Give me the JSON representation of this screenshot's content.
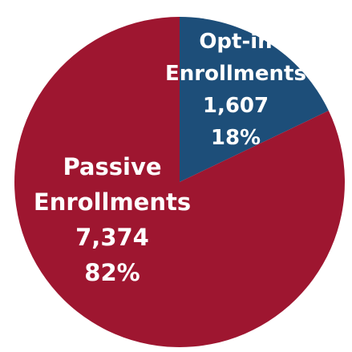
{
  "chart_data": {
    "type": "pie",
    "title": "",
    "slices": [
      {
        "name_lines": [
          "Opt-in",
          "Enrollments"
        ],
        "value": 1607,
        "value_label": "1,607",
        "percent": 18,
        "percent_label": "18%",
        "color": "#1d4e79"
      },
      {
        "name_lines": [
          "Passive",
          "Enrollments"
        ],
        "value": 7374,
        "value_label": "7,374",
        "percent": 82,
        "percent_label": "82%",
        "color": "#9e1630"
      }
    ],
    "start_angle_deg": 0,
    "direction": "clockwise",
    "legend": "none",
    "label_position": "inside"
  }
}
